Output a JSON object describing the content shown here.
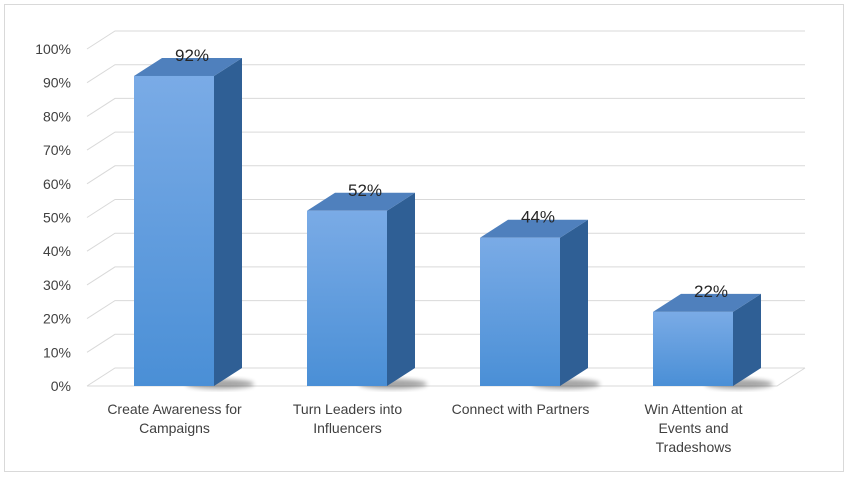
{
  "chart_data": {
    "type": "bar",
    "title": "",
    "xlabel": "",
    "ylabel": "",
    "ylim": [
      0,
      100
    ],
    "y_ticks": [
      "0%",
      "10%",
      "20%",
      "30%",
      "40%",
      "50%",
      "60%",
      "70%",
      "80%",
      "90%",
      "100%"
    ],
    "categories": [
      [
        "Create Awareness for",
        "Campaigns"
      ],
      [
        "Turn Leaders into",
        "Influencers"
      ],
      [
        "Connect with Partners"
      ],
      [
        "Win Attention at",
        "Events and",
        "Tradeshows"
      ]
    ],
    "values": [
      92,
      52,
      44,
      22
    ],
    "data_labels": [
      "92%",
      "52%",
      "44%",
      "22%"
    ],
    "grid": true,
    "legend": "none",
    "style": "3d-column",
    "colors": {
      "bar_front_top": "#7aabe6",
      "bar_front_bottom": "#4a8fd6",
      "bar_top_face": "#4f80bd",
      "bar_side_face": "#2f5f95",
      "grid": "#d9d9d9"
    }
  }
}
